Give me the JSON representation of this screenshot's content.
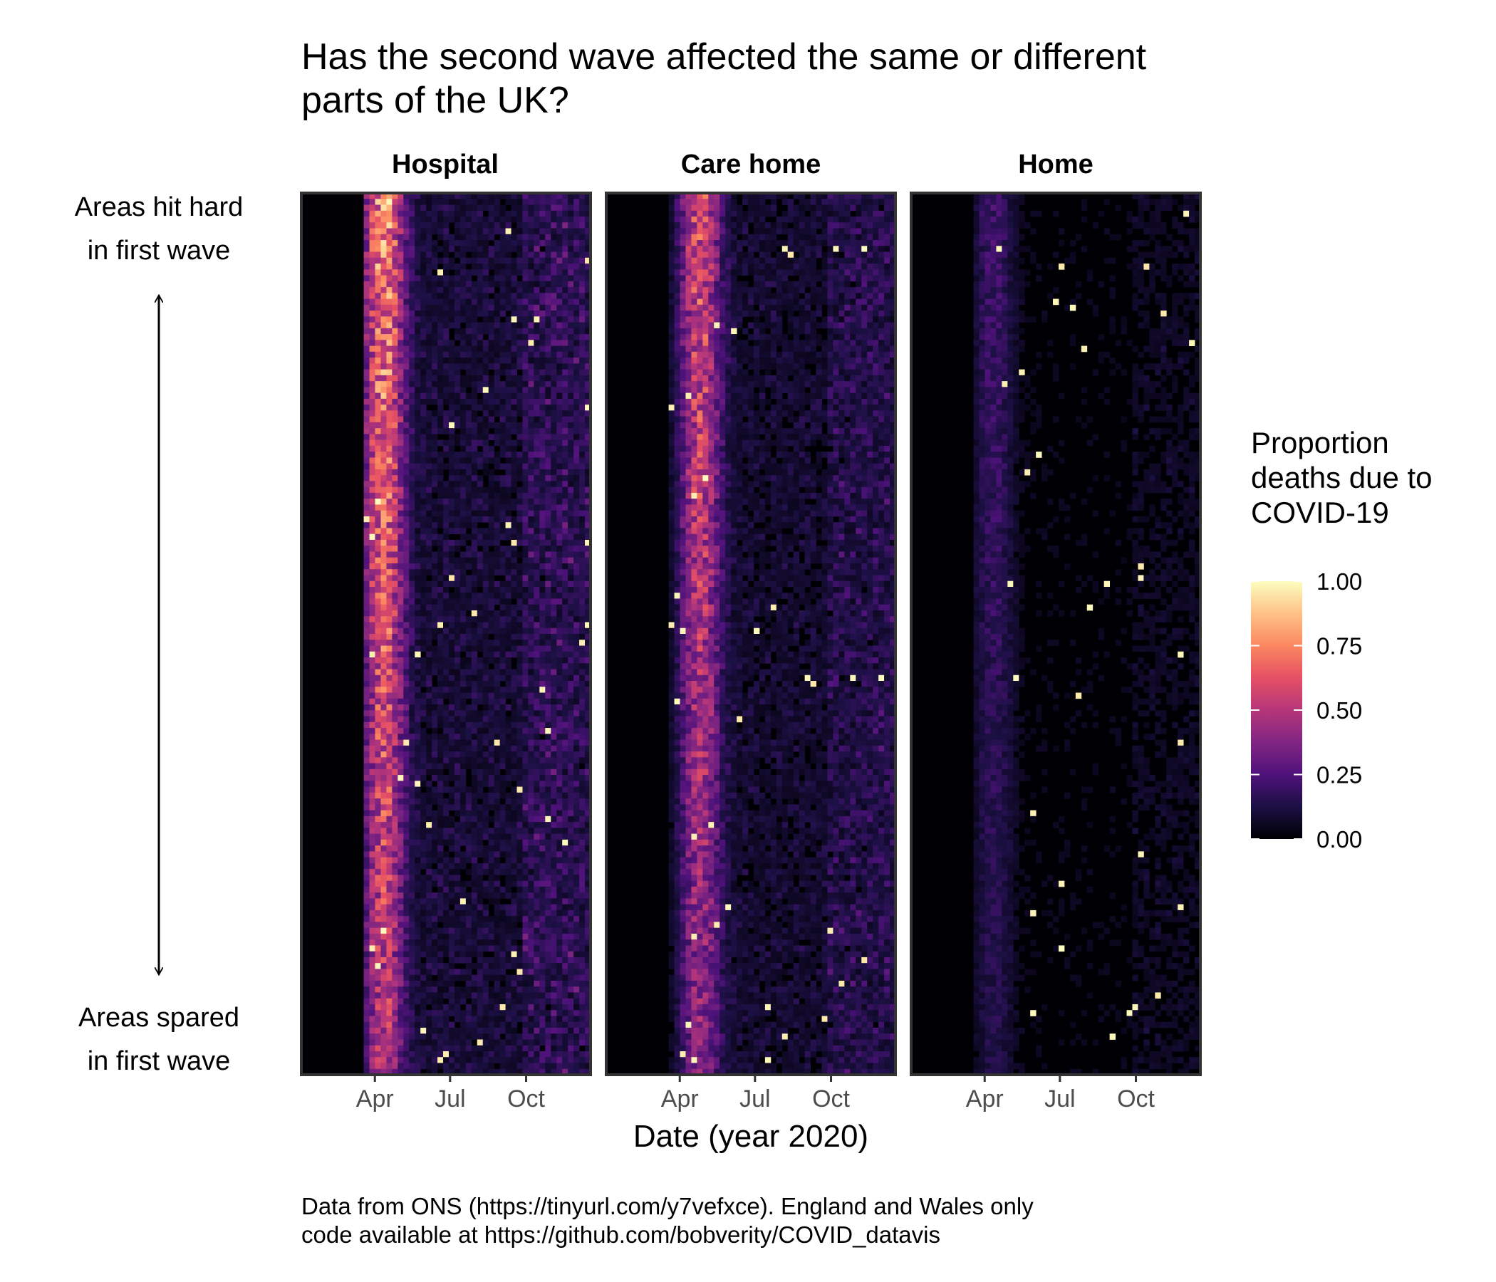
{
  "chart_data": {
    "type": "heatmap",
    "title": "Has the second wave affected the same or different parts of the UK?",
    "title_lines": [
      "Has the second wave affected the same or different",
      "parts of the UK?"
    ],
    "xlabel": "Date (year 2020)",
    "x_tick_labels": [
      "Apr",
      "Jul",
      "Oct"
    ],
    "x_tick_dates": [
      "2020-04-01",
      "2020-07-01",
      "2020-10-01"
    ],
    "xlim": [
      "2020-01-03",
      "2020-12-18"
    ],
    "y_order": "Areas hit hard in first wave (top) to areas spared in first wave (bottom)",
    "y_annotation_top": [
      "Areas hit hard",
      "in first wave"
    ],
    "y_annotation_bottom": [
      "Areas spared",
      "in first wave"
    ],
    "facets": [
      {
        "name": "Hospital",
        "peak_date": "2020-04-10",
        "peak_value": 0.78,
        "second_wave_value": 0.35
      },
      {
        "name": "Care home",
        "peak_date": "2020-04-24",
        "peak_value": 0.62,
        "second_wave_value": 0.3
      },
      {
        "name": "Home",
        "peak_date": "2020-04-10",
        "peak_value": 0.22,
        "second_wave_value": 0.12
      }
    ],
    "legend": {
      "title_lines": [
        "Proportion",
        "deaths due to",
        "COVID-19"
      ],
      "ticks": [
        "1.00",
        "0.75",
        "0.50",
        "0.25",
        "0.00"
      ],
      "tick_values": [
        1.0,
        0.75,
        0.5,
        0.25,
        0.0
      ],
      "range": [
        0,
        1
      ],
      "colormap": "magma",
      "stops": [
        "#000004",
        "#1c1044",
        "#4f127b",
        "#812581",
        "#b5367a",
        "#e55064",
        "#fb8761",
        "#fec287",
        "#fcfdbf"
      ],
      "placement": "right"
    },
    "caption_lines": [
      "Data from ONS (https://tinyurl.com/y7vefxce). England and Wales only",
      "code available at https://github.com/bobverity/COVID_datavis"
    ]
  }
}
